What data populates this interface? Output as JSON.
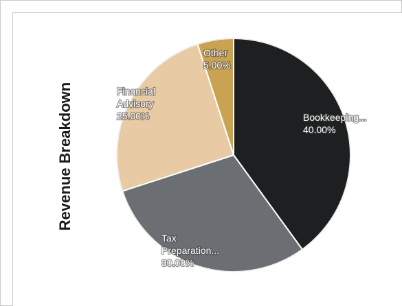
{
  "chart_data": {
    "type": "pie",
    "title": "Revenue Breakdown",
    "start_angle_deg": 0,
    "slices": [
      {
        "label": "Bookkeeping...",
        "value": 40.0,
        "display": "40.00%",
        "color": "#1e1f21"
      },
      {
        "label": "Tax Preparation...",
        "value": 30.0,
        "display": "30.00%",
        "color": "#6b6e72"
      },
      {
        "label": "Financial Advisory",
        "value": 25.0,
        "display": "25.00%",
        "color": "#e8cba5"
      },
      {
        "label": "Other",
        "value": 5.0,
        "display": "5.00%",
        "color": "#c9a252"
      }
    ],
    "label_lines": [
      [
        "Bookkeeping...",
        "40.00%"
      ],
      [
        "Tax",
        "Preparation...",
        "30.00%"
      ],
      [
        "Financial",
        "Advisory",
        "25.00%"
      ],
      [
        "Other",
        "5.00%"
      ]
    ]
  }
}
